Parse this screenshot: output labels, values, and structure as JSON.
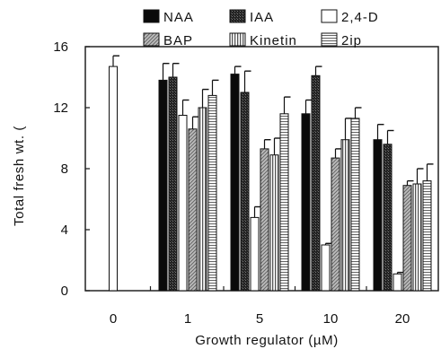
{
  "chart_data": {
    "type": "bar",
    "xlabel": "Growth regulator (µM)",
    "ylabel": "Total fresh wt. (",
    "ylim": [
      0,
      16
    ],
    "yticks": [
      0,
      4,
      8,
      12,
      16
    ],
    "categories": [
      "0",
      "1",
      "5",
      "10",
      "20"
    ],
    "legend_position": "top",
    "series": [
      {
        "name": "NAA",
        "pattern": "solid-black",
        "values": [
          null,
          13.8,
          14.2,
          11.6,
          9.9
        ],
        "errors": [
          null,
          1.1,
          0.5,
          0.9,
          1.0
        ]
      },
      {
        "name": "IAA",
        "pattern": "dark-dense",
        "values": [
          null,
          14.0,
          13.0,
          14.1,
          9.6
        ],
        "errors": [
          null,
          0.9,
          1.4,
          0.6,
          0.9
        ]
      },
      {
        "name": "2,4-D",
        "pattern": "white",
        "values": [
          null,
          11.5,
          4.8,
          3.0,
          1.1
        ],
        "errors": [
          null,
          1.0,
          0.7,
          0.1,
          0.1
        ]
      },
      {
        "name": "BAP",
        "pattern": "gray-hatch",
        "values": [
          null,
          10.6,
          9.3,
          8.7,
          6.9
        ],
        "errors": [
          null,
          0.8,
          0.6,
          0.6,
          0.3
        ]
      },
      {
        "name": "Kinetin",
        "pattern": "vertical-lines",
        "values": [
          null,
          12.0,
          8.9,
          9.9,
          7.0
        ],
        "errors": [
          null,
          1.2,
          1.1,
          1.4,
          1.0
        ]
      },
      {
        "name": "2ip",
        "pattern": "horizontal-lines",
        "values": [
          null,
          12.8,
          11.6,
          11.3,
          7.2
        ],
        "errors": [
          null,
          1.0,
          1.1,
          0.7,
          1.1
        ]
      }
    ],
    "control": {
      "category": "0",
      "value": 14.7,
      "error": 0.7,
      "pattern": "white"
    }
  }
}
